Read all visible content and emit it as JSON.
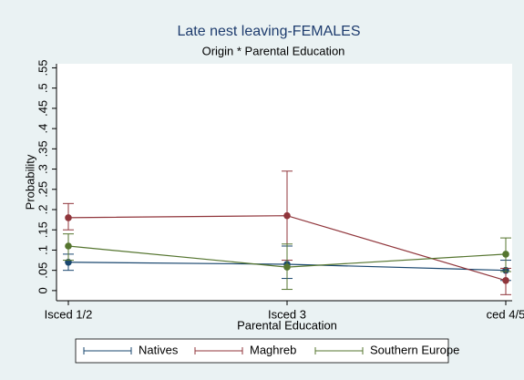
{
  "chart_data": {
    "type": "line",
    "title": "Late nest leaving-FEMALES",
    "subtitle": "Origin * Parental Education",
    "y_label": "Probability",
    "x_label": "Parental Education",
    "categories": [
      "Isced 1/2",
      "Isced 3",
      "ced 4/5"
    ],
    "series": [
      {
        "name": "Natives",
        "color": "#1a476f",
        "values": [
          0.07,
          0.065,
          0.05
        ],
        "lower": [
          0.05,
          0.03,
          0.025
        ],
        "upper": [
          0.09,
          0.11,
          0.075
        ]
      },
      {
        "name": "Maghreb",
        "color": "#90353b",
        "values": [
          0.18,
          0.185,
          0.025
        ],
        "lower": [
          0.15,
          0.075,
          -0.01
        ],
        "upper": [
          0.215,
          0.295,
          0.055
        ]
      },
      {
        "name": "Southern Europe",
        "color": "#55752f",
        "values": [
          0.11,
          0.058,
          0.09
        ],
        "lower": [
          0.075,
          0.003,
          0.047
        ],
        "upper": [
          0.14,
          0.115,
          0.13
        ]
      }
    ],
    "ylim": [
      -0.025,
      0.56
    ],
    "yticks": [
      0,
      {
        "value": 0.05,
        "label": ".05"
      },
      {
        "value": 0.1,
        "label": ".1"
      },
      {
        "value": 0.15,
        "label": ".15"
      },
      {
        "value": 0.2,
        "label": ".2"
      },
      {
        "value": 0.25,
        "label": ".25"
      },
      {
        "value": 0.3,
        "label": ".3"
      },
      {
        "value": 0.35,
        "label": ".35"
      },
      {
        "value": 0.4,
        "label": ".4"
      },
      {
        "value": 0.45,
        "label": ".45"
      },
      {
        "value": 0.5,
        "label": ".5"
      },
      {
        "value": 0.55,
        "label": ".55"
      }
    ],
    "grid": false,
    "legend": "bottom"
  }
}
